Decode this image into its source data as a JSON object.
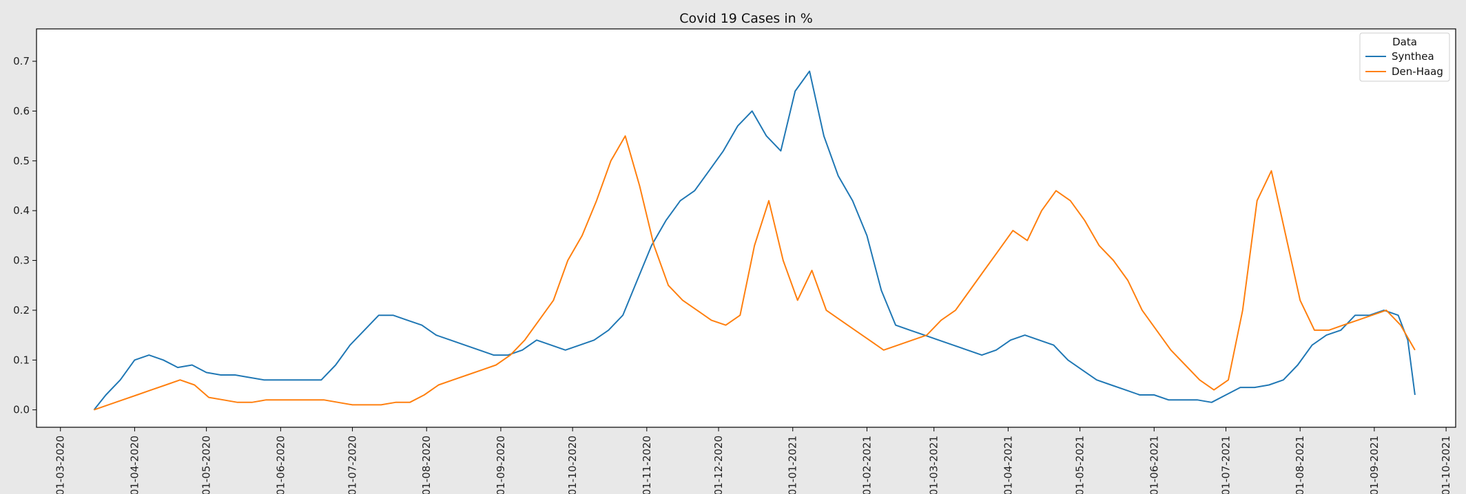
{
  "chart_data": {
    "type": "line",
    "title": "Covid 19 Cases in %",
    "xlabel": "",
    "ylabel": "",
    "date_format": "DD-MM-YYYY",
    "xlim": [
      "2020-02-20",
      "2021-10-05"
    ],
    "ylim": [
      -0.035,
      0.765
    ],
    "yticks": [
      0.0,
      0.1,
      0.2,
      0.3,
      0.4,
      0.5,
      0.6,
      0.7
    ],
    "ytick_labels": [
      "0.0",
      "0.1",
      "0.2",
      "0.3",
      "0.4",
      "0.5",
      "0.6",
      "0.7"
    ],
    "xticks": [
      "2020-03-01",
      "2020-04-01",
      "2020-05-01",
      "2020-06-01",
      "2020-07-01",
      "2020-08-01",
      "2020-09-01",
      "2020-10-01",
      "2020-11-01",
      "2020-12-01",
      "2021-01-01",
      "2021-02-01",
      "2021-03-01",
      "2021-04-01",
      "2021-05-01",
      "2021-06-01",
      "2021-07-01",
      "2021-08-01",
      "2021-09-01",
      "2021-10-01"
    ],
    "xtick_labels": [
      "01-03-2020",
      "01-04-2020",
      "01-05-2020",
      "01-06-2020",
      "01-07-2020",
      "01-08-2020",
      "01-09-2020",
      "01-10-2020",
      "01-11-2020",
      "01-12-2020",
      "01-01-2021",
      "01-02-2021",
      "01-03-2021",
      "01-04-2021",
      "01-05-2021",
      "01-06-2021",
      "01-07-2021",
      "01-08-2021",
      "01-09-2021",
      "01-10-2021"
    ],
    "grid": false,
    "legend": {
      "title": "Data",
      "position": "top-right"
    },
    "series": [
      {
        "name": "Synthea",
        "color": "#1f77b4",
        "points": [
          [
            "2020-03-15",
            0.0
          ],
          [
            "2020-03-20",
            0.03
          ],
          [
            "2020-03-26",
            0.06
          ],
          [
            "2020-04-01",
            0.1
          ],
          [
            "2020-04-07",
            0.11
          ],
          [
            "2020-04-13",
            0.1
          ],
          [
            "2020-04-19",
            0.085
          ],
          [
            "2020-04-25",
            0.09
          ],
          [
            "2020-05-01",
            0.075
          ],
          [
            "2020-05-07",
            0.07
          ],
          [
            "2020-05-13",
            0.07
          ],
          [
            "2020-05-19",
            0.065
          ],
          [
            "2020-05-25",
            0.06
          ],
          [
            "2020-05-31",
            0.06
          ],
          [
            "2020-06-06",
            0.06
          ],
          [
            "2020-06-12",
            0.06
          ],
          [
            "2020-06-18",
            0.06
          ],
          [
            "2020-06-24",
            0.09
          ],
          [
            "2020-06-30",
            0.13
          ],
          [
            "2020-07-06",
            0.16
          ],
          [
            "2020-07-12",
            0.19
          ],
          [
            "2020-07-18",
            0.19
          ],
          [
            "2020-07-24",
            0.18
          ],
          [
            "2020-07-30",
            0.17
          ],
          [
            "2020-08-05",
            0.15
          ],
          [
            "2020-08-11",
            0.14
          ],
          [
            "2020-08-17",
            0.13
          ],
          [
            "2020-08-23",
            0.12
          ],
          [
            "2020-08-29",
            0.11
          ],
          [
            "2020-09-04",
            0.11
          ],
          [
            "2020-09-10",
            0.12
          ],
          [
            "2020-09-16",
            0.14
          ],
          [
            "2020-09-22",
            0.13
          ],
          [
            "2020-09-28",
            0.12
          ],
          [
            "2020-10-04",
            0.13
          ],
          [
            "2020-10-10",
            0.14
          ],
          [
            "2020-10-16",
            0.16
          ],
          [
            "2020-10-22",
            0.19
          ],
          [
            "2020-10-28",
            0.26
          ],
          [
            "2020-11-03",
            0.33
          ],
          [
            "2020-11-09",
            0.38
          ],
          [
            "2020-11-15",
            0.42
          ],
          [
            "2020-11-21",
            0.44
          ],
          [
            "2020-11-27",
            0.48
          ],
          [
            "2020-12-03",
            0.52
          ],
          [
            "2020-12-09",
            0.57
          ],
          [
            "2020-12-15",
            0.6
          ],
          [
            "2020-12-21",
            0.55
          ],
          [
            "2020-12-27",
            0.52
          ],
          [
            "2021-01-02",
            0.64
          ],
          [
            "2021-01-08",
            0.68
          ],
          [
            "2021-01-14",
            0.55
          ],
          [
            "2021-01-20",
            0.47
          ],
          [
            "2021-01-26",
            0.42
          ],
          [
            "2021-02-01",
            0.35
          ],
          [
            "2021-02-07",
            0.24
          ],
          [
            "2021-02-13",
            0.17
          ],
          [
            "2021-02-19",
            0.16
          ],
          [
            "2021-02-25",
            0.15
          ],
          [
            "2021-03-03",
            0.14
          ],
          [
            "2021-03-09",
            0.13
          ],
          [
            "2021-03-15",
            0.12
          ],
          [
            "2021-03-21",
            0.11
          ],
          [
            "2021-03-27",
            0.12
          ],
          [
            "2021-04-02",
            0.14
          ],
          [
            "2021-04-08",
            0.15
          ],
          [
            "2021-04-14",
            0.14
          ],
          [
            "2021-04-20",
            0.13
          ],
          [
            "2021-04-26",
            0.1
          ],
          [
            "2021-05-02",
            0.08
          ],
          [
            "2021-05-08",
            0.06
          ],
          [
            "2021-05-14",
            0.05
          ],
          [
            "2021-05-20",
            0.04
          ],
          [
            "2021-05-26",
            0.03
          ],
          [
            "2021-06-01",
            0.03
          ],
          [
            "2021-06-07",
            0.02
          ],
          [
            "2021-06-13",
            0.02
          ],
          [
            "2021-06-19",
            0.02
          ],
          [
            "2021-06-25",
            0.015
          ],
          [
            "2021-07-01",
            0.03
          ],
          [
            "2021-07-07",
            0.045
          ],
          [
            "2021-07-13",
            0.045
          ],
          [
            "2021-07-19",
            0.05
          ],
          [
            "2021-07-25",
            0.06
          ],
          [
            "2021-07-31",
            0.09
          ],
          [
            "2021-08-06",
            0.13
          ],
          [
            "2021-08-12",
            0.15
          ],
          [
            "2021-08-18",
            0.16
          ],
          [
            "2021-08-24",
            0.19
          ],
          [
            "2021-08-30",
            0.19
          ],
          [
            "2021-09-05",
            0.2
          ],
          [
            "2021-09-11",
            0.19
          ],
          [
            "2021-09-15",
            0.14
          ],
          [
            "2021-09-18",
            0.03
          ]
        ]
      },
      {
        "name": "Den-Haag",
        "color": "#ff7f0e",
        "points": [
          [
            "2020-03-15",
            0.0
          ],
          [
            "2020-03-21",
            0.01
          ],
          [
            "2020-03-27",
            0.02
          ],
          [
            "2020-04-02",
            0.03
          ],
          [
            "2020-04-08",
            0.04
          ],
          [
            "2020-04-14",
            0.05
          ],
          [
            "2020-04-20",
            0.06
          ],
          [
            "2020-04-26",
            0.05
          ],
          [
            "2020-05-02",
            0.025
          ],
          [
            "2020-05-08",
            0.02
          ],
          [
            "2020-05-14",
            0.015
          ],
          [
            "2020-05-20",
            0.015
          ],
          [
            "2020-05-26",
            0.02
          ],
          [
            "2020-06-01",
            0.02
          ],
          [
            "2020-06-07",
            0.02
          ],
          [
            "2020-06-13",
            0.02
          ],
          [
            "2020-06-19",
            0.02
          ],
          [
            "2020-06-25",
            0.015
          ],
          [
            "2020-07-01",
            0.01
          ],
          [
            "2020-07-07",
            0.01
          ],
          [
            "2020-07-13",
            0.01
          ],
          [
            "2020-07-19",
            0.015
          ],
          [
            "2020-07-25",
            0.015
          ],
          [
            "2020-07-31",
            0.03
          ],
          [
            "2020-08-06",
            0.05
          ],
          [
            "2020-08-12",
            0.06
          ],
          [
            "2020-08-18",
            0.07
          ],
          [
            "2020-08-24",
            0.08
          ],
          [
            "2020-08-30",
            0.09
          ],
          [
            "2020-09-05",
            0.11
          ],
          [
            "2020-09-11",
            0.14
          ],
          [
            "2020-09-17",
            0.18
          ],
          [
            "2020-09-23",
            0.22
          ],
          [
            "2020-09-29",
            0.3
          ],
          [
            "2020-10-05",
            0.35
          ],
          [
            "2020-10-11",
            0.42
          ],
          [
            "2020-10-17",
            0.5
          ],
          [
            "2020-10-23",
            0.55
          ],
          [
            "2020-10-29",
            0.45
          ],
          [
            "2020-11-04",
            0.33
          ],
          [
            "2020-11-10",
            0.25
          ],
          [
            "2020-11-16",
            0.22
          ],
          [
            "2020-11-22",
            0.2
          ],
          [
            "2020-11-28",
            0.18
          ],
          [
            "2020-12-04",
            0.17
          ],
          [
            "2020-12-10",
            0.19
          ],
          [
            "2020-12-16",
            0.33
          ],
          [
            "2020-12-22",
            0.42
          ],
          [
            "2020-12-28",
            0.3
          ],
          [
            "2021-01-03",
            0.22
          ],
          [
            "2021-01-09",
            0.28
          ],
          [
            "2021-01-15",
            0.2
          ],
          [
            "2021-01-21",
            0.18
          ],
          [
            "2021-01-27",
            0.16
          ],
          [
            "2021-02-02",
            0.14
          ],
          [
            "2021-02-08",
            0.12
          ],
          [
            "2021-02-14",
            0.13
          ],
          [
            "2021-02-20",
            0.14
          ],
          [
            "2021-02-26",
            0.15
          ],
          [
            "2021-03-04",
            0.18
          ],
          [
            "2021-03-10",
            0.2
          ],
          [
            "2021-03-16",
            0.24
          ],
          [
            "2021-03-22",
            0.28
          ],
          [
            "2021-03-28",
            0.32
          ],
          [
            "2021-04-03",
            0.36
          ],
          [
            "2021-04-09",
            0.34
          ],
          [
            "2021-04-15",
            0.4
          ],
          [
            "2021-04-21",
            0.44
          ],
          [
            "2021-04-27",
            0.42
          ],
          [
            "2021-05-03",
            0.38
          ],
          [
            "2021-05-09",
            0.33
          ],
          [
            "2021-05-15",
            0.3
          ],
          [
            "2021-05-21",
            0.26
          ],
          [
            "2021-05-27",
            0.2
          ],
          [
            "2021-06-02",
            0.16
          ],
          [
            "2021-06-08",
            0.12
          ],
          [
            "2021-06-14",
            0.09
          ],
          [
            "2021-06-20",
            0.06
          ],
          [
            "2021-06-26",
            0.04
          ],
          [
            "2021-07-02",
            0.06
          ],
          [
            "2021-07-08",
            0.2
          ],
          [
            "2021-07-14",
            0.42
          ],
          [
            "2021-07-20",
            0.48
          ],
          [
            "2021-07-26",
            0.35
          ],
          [
            "2021-08-01",
            0.22
          ],
          [
            "2021-08-07",
            0.16
          ],
          [
            "2021-08-13",
            0.16
          ],
          [
            "2021-08-19",
            0.17
          ],
          [
            "2021-08-25",
            0.18
          ],
          [
            "2021-08-31",
            0.19
          ],
          [
            "2021-09-06",
            0.2
          ],
          [
            "2021-09-12",
            0.17
          ],
          [
            "2021-09-18",
            0.12
          ]
        ]
      }
    ]
  }
}
